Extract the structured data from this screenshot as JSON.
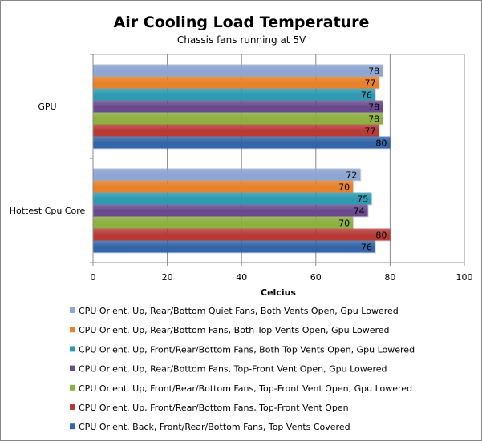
{
  "chart_data": {
    "type": "bar",
    "orientation": "horizontal",
    "title": "Air Cooling Load Temperature",
    "subtitle": "Chassis fans running at 5V",
    "xlabel": "Celcius",
    "ylabel": "",
    "xlim": [
      0,
      100
    ],
    "xticks": [
      "0",
      "20",
      "40",
      "60",
      "80",
      "100"
    ],
    "grid": true,
    "legend_position": "bottom",
    "categories": [
      "GPU",
      "Hottest Cpu Core"
    ],
    "series": [
      {
        "name": "CPU Orient. Up, Rear/Bottom Quiet Fans, Both Vents Open, Gpu Lowered",
        "color": "#8EA6D3",
        "values": [
          78,
          72
        ]
      },
      {
        "name": "CPU Orient. Up, Rear/Bottom Fans, Both Top Vents Open, Gpu Lowered",
        "color": "#E8822A",
        "values": [
          77,
          70
        ]
      },
      {
        "name": "CPU Orient. Up, Front/Rear/Bottom Fans, Both Top Vents Open, Gpu Lowered",
        "color": "#2E9BB3",
        "values": [
          76,
          75
        ]
      },
      {
        "name": "CPU Orient. Up, Rear/Bottom Fans, Top-Front Vent Open, Gpu Lowered",
        "color": "#6A4A8E",
        "values": [
          78,
          74
        ]
      },
      {
        "name": "CPU Orient. Up, Front/Rear/Bottom Fans, Top-Front Vent Open, Gpu Lowered",
        "color": "#8DB040",
        "values": [
          78,
          70
        ]
      },
      {
        "name": "CPU Orient. Up, Front/Rear/Bottom Fans, Top-Front Vent Open",
        "color": "#B83A36",
        "values": [
          77,
          80
        ]
      },
      {
        "name": "CPU Orient. Back, Front/Rear/Bottom Fans, Top Vents Covered",
        "color": "#3465A8",
        "values": [
          80,
          76
        ]
      }
    ]
  }
}
